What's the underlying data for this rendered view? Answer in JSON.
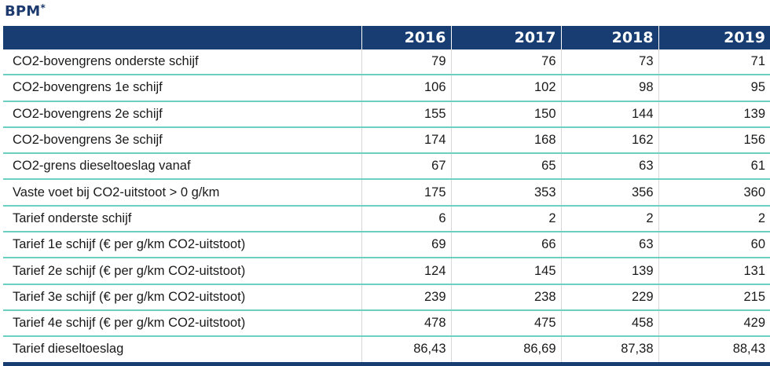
{
  "title": "BPM",
  "title_marker": "*",
  "columns": [
    "2016",
    "2017",
    "2018",
    "2019"
  ],
  "rows": [
    {
      "label": "CO2-bovengrens onderste schijf",
      "values": [
        "79",
        "76",
        "73",
        "71"
      ]
    },
    {
      "label": "CO2-bovengrens 1e schijf",
      "values": [
        "106",
        "102",
        "98",
        "95"
      ]
    },
    {
      "label": "CO2-bovengrens 2e schijf",
      "values": [
        "155",
        "150",
        "144",
        "139"
      ]
    },
    {
      "label": "CO2-bovengrens 3e schijf",
      "values": [
        "174",
        "168",
        "162",
        "156"
      ]
    },
    {
      "label": "CO2-grens dieseltoeslag vanaf",
      "values": [
        "67",
        "65",
        "63",
        "61"
      ]
    },
    {
      "label": "Vaste voet bij CO2-uitstoot > 0 g/km",
      "values": [
        "175",
        "353",
        "356",
        "360"
      ]
    },
    {
      "label": "Tarief onderste schijf",
      "values": [
        "6",
        "2",
        "2",
        "2"
      ]
    },
    {
      "label": "Tarief 1e schijf (€ per g/km CO2-uitstoot)",
      "values": [
        "69",
        "66",
        "63",
        "60"
      ]
    },
    {
      "label": "Tarief 2e schijf (€ per g/km CO2-uitstoot)",
      "values": [
        "124",
        "145",
        "139",
        "131"
      ]
    },
    {
      "label": "Tarief 3e schijf (€ per g/km CO2-uitstoot)",
      "values": [
        "239",
        "238",
        "229",
        "215"
      ]
    },
    {
      "label": "Tarief 4e schijf (€ per g/km CO2-uitstoot)",
      "values": [
        "478",
        "475",
        "458",
        "429"
      ]
    },
    {
      "label": "Tarief dieseltoeslag",
      "values": [
        "86,43",
        "86,69",
        "87,38",
        "88,43"
      ]
    }
  ],
  "colors": {
    "header_bg": "#173d73",
    "title": "#1d3a6e",
    "row_divider": "#6ccfc2"
  }
}
